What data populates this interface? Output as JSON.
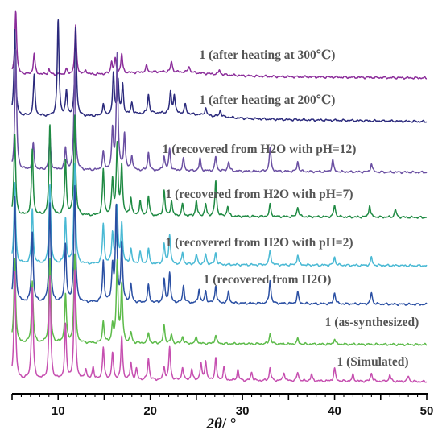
{
  "chart_data": {
    "type": "line",
    "xlabel_symbol": "2θ",
    "xlabel_unit": "/ °",
    "xlim": [
      5,
      50
    ],
    "x_ticks": [
      10,
      20,
      30,
      40,
      50
    ],
    "grid": false,
    "series": [
      {
        "name": "1 (after heating at 300℃)",
        "color": "#8b2c9a",
        "peaks": [
          [
            5.4,
            1.0
          ],
          [
            7.4,
            0.32
          ],
          [
            9.0,
            0.08
          ],
          [
            10.9,
            0.08
          ],
          [
            11.9,
            0.75
          ],
          [
            13.0,
            0.07
          ],
          [
            15.8,
            0.18
          ],
          [
            16.2,
            0.22
          ],
          [
            16.9,
            0.3
          ],
          [
            19.6,
            0.1
          ],
          [
            22.3,
            0.16
          ],
          [
            24.2,
            0.1
          ],
          [
            27.5,
            0.07
          ]
        ]
      },
      {
        "name": "1 (after heating at 200℃)",
        "color": "#2b2a7c",
        "peaks": [
          [
            5.3,
            0.9
          ],
          [
            7.4,
            0.42
          ],
          [
            10.0,
            1.0
          ],
          [
            10.9,
            0.25
          ],
          [
            11.9,
            0.92
          ],
          [
            14.9,
            0.12
          ],
          [
            16.0,
            0.42
          ],
          [
            16.5,
            0.35
          ],
          [
            17.0,
            0.3
          ],
          [
            18.0,
            0.12
          ],
          [
            19.8,
            0.2
          ],
          [
            22.2,
            0.22
          ],
          [
            22.6,
            0.18
          ],
          [
            23.8,
            0.1
          ],
          [
            26.0,
            0.08
          ],
          [
            27.6,
            0.07
          ]
        ]
      },
      {
        "name": "1 (recovered from H2O with pH=12)",
        "color": "#6a4fa2",
        "peaks": [
          [
            5.4,
            1.0
          ],
          [
            7.3,
            0.22
          ],
          [
            9.1,
            0.28
          ],
          [
            10.8,
            0.18
          ],
          [
            11.8,
            0.85
          ],
          [
            14.9,
            0.15
          ],
          [
            15.9,
            0.32
          ],
          [
            16.4,
            0.95
          ],
          [
            17.2,
            0.3
          ],
          [
            18.0,
            0.12
          ],
          [
            19.8,
            0.15
          ],
          [
            21.5,
            0.12
          ],
          [
            22.1,
            0.18
          ],
          [
            23.6,
            0.1
          ],
          [
            25.4,
            0.1
          ],
          [
            27.1,
            0.12
          ],
          [
            28.5,
            0.08
          ],
          [
            33.0,
            0.2
          ],
          [
            36.0,
            0.08
          ],
          [
            39.8,
            0.1
          ],
          [
            44.0,
            0.07
          ]
        ]
      },
      {
        "name": "1 (recovered from H2O with pH=7)",
        "color": "#1f8a43",
        "peaks": [
          [
            5.3,
            0.8
          ],
          [
            7.2,
            0.65
          ],
          [
            9.1,
            0.9
          ],
          [
            10.8,
            0.55
          ],
          [
            11.8,
            1.0
          ],
          [
            14.9,
            0.45
          ],
          [
            15.9,
            0.35
          ],
          [
            16.4,
            0.7
          ],
          [
            16.9,
            0.5
          ],
          [
            17.9,
            0.18
          ],
          [
            18.9,
            0.15
          ],
          [
            19.8,
            0.2
          ],
          [
            21.5,
            0.25
          ],
          [
            22.3,
            0.15
          ],
          [
            23.5,
            0.12
          ],
          [
            25.0,
            0.15
          ],
          [
            26.0,
            0.12
          ],
          [
            27.1,
            0.35
          ],
          [
            28.4,
            0.1
          ],
          [
            33.0,
            0.12
          ],
          [
            36.0,
            0.1
          ],
          [
            40.0,
            0.12
          ],
          [
            43.8,
            0.12
          ],
          [
            46.6,
            0.08
          ]
        ]
      },
      {
        "name": "1 (recovered from H2O with pH=2)",
        "color": "#49b9d4",
        "peaks": [
          [
            5.3,
            0.8
          ],
          [
            7.2,
            0.55
          ],
          [
            9.1,
            0.8
          ],
          [
            10.8,
            0.45
          ],
          [
            11.8,
            1.0
          ],
          [
            14.9,
            0.4
          ],
          [
            15.9,
            0.3
          ],
          [
            16.4,
            0.55
          ],
          [
            16.9,
            0.4
          ],
          [
            17.9,
            0.15
          ],
          [
            18.9,
            0.12
          ],
          [
            19.8,
            0.15
          ],
          [
            21.5,
            0.2
          ],
          [
            22.1,
            0.3
          ],
          [
            23.5,
            0.12
          ],
          [
            25.0,
            0.1
          ],
          [
            26.0,
            0.1
          ],
          [
            27.1,
            0.12
          ],
          [
            33.0,
            0.15
          ],
          [
            36.0,
            0.1
          ],
          [
            40.0,
            0.08
          ],
          [
            44.0,
            0.08
          ]
        ]
      },
      {
        "name": "1 (recovered from H2O)",
        "color": "#2a4fa3",
        "peaks": [
          [
            5.3,
            0.9
          ],
          [
            7.2,
            0.6
          ],
          [
            9.1,
            0.85
          ],
          [
            10.8,
            0.5
          ],
          [
            11.8,
            1.0
          ],
          [
            14.9,
            0.35
          ],
          [
            15.9,
            0.3
          ],
          [
            16.3,
            0.8
          ],
          [
            16.9,
            0.5
          ],
          [
            17.9,
            0.15
          ],
          [
            19.8,
            0.15
          ],
          [
            21.5,
            0.2
          ],
          [
            22.1,
            0.25
          ],
          [
            23.6,
            0.15
          ],
          [
            25.3,
            0.12
          ],
          [
            26.0,
            0.1
          ],
          [
            27.1,
            0.15
          ],
          [
            28.5,
            0.1
          ],
          [
            33.0,
            0.2
          ],
          [
            36.0,
            0.1
          ],
          [
            40.0,
            0.1
          ],
          [
            44.0,
            0.1
          ]
        ]
      },
      {
        "name": "1 (as-synthesized)",
        "color": "#5dbb4a",
        "peaks": [
          [
            5.3,
            0.95
          ],
          [
            7.2,
            0.7
          ],
          [
            9.1,
            0.95
          ],
          [
            10.8,
            0.55
          ],
          [
            11.8,
            1.0
          ],
          [
            14.9,
            0.25
          ],
          [
            15.9,
            0.2
          ],
          [
            16.4,
            0.9
          ],
          [
            16.9,
            0.65
          ],
          [
            17.9,
            0.12
          ],
          [
            19.8,
            0.12
          ],
          [
            21.5,
            0.2
          ],
          [
            22.3,
            0.1
          ],
          [
            23.5,
            0.08
          ],
          [
            25.0,
            0.08
          ],
          [
            27.1,
            0.1
          ],
          [
            33.0,
            0.12
          ],
          [
            36.0,
            0.06
          ],
          [
            40.0,
            0.06
          ]
        ]
      },
      {
        "name": "1 (Simulated)",
        "color": "#c64fb0",
        "peaks": [
          [
            5.3,
            1.0
          ],
          [
            7.2,
            0.85
          ],
          [
            9.1,
            0.95
          ],
          [
            10.8,
            0.5
          ],
          [
            11.8,
            1.0
          ],
          [
            13.0,
            0.1
          ],
          [
            13.8,
            0.12
          ],
          [
            14.9,
            0.3
          ],
          [
            15.9,
            0.25
          ],
          [
            16.9,
            0.4
          ],
          [
            17.9,
            0.15
          ],
          [
            18.5,
            0.1
          ],
          [
            19.8,
            0.2
          ],
          [
            21.5,
            0.12
          ],
          [
            22.1,
            0.3
          ],
          [
            23.5,
            0.12
          ],
          [
            24.5,
            0.1
          ],
          [
            25.5,
            0.15
          ],
          [
            26.0,
            0.18
          ],
          [
            27.1,
            0.2
          ],
          [
            28.0,
            0.12
          ],
          [
            29.5,
            0.1
          ],
          [
            31.0,
            0.08
          ],
          [
            33.0,
            0.12
          ],
          [
            34.5,
            0.08
          ],
          [
            36.0,
            0.08
          ],
          [
            37.5,
            0.06
          ],
          [
            40.0,
            0.12
          ],
          [
            42.0,
            0.06
          ],
          [
            44.0,
            0.08
          ],
          [
            46.0,
            0.06
          ],
          [
            48.0,
            0.05
          ]
        ]
      }
    ]
  }
}
